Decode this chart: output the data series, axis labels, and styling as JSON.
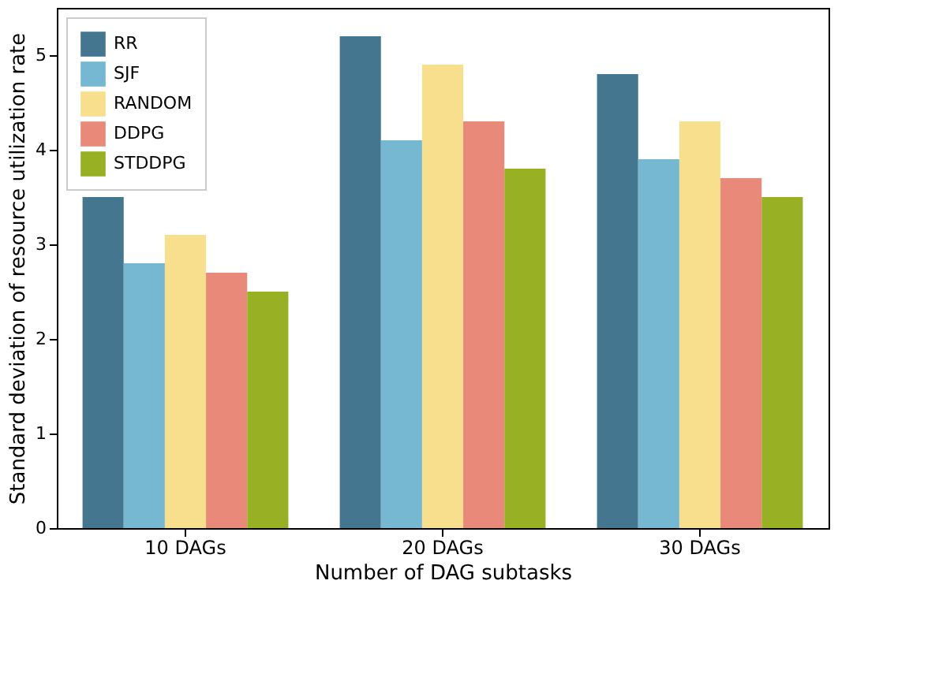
{
  "chart_data": {
    "type": "bar",
    "xlabel": "Number of DAG subtasks",
    "ylabel": "Standard deviation of resource utilization rate",
    "categories": [
      "10 DAGs",
      "20 DAGs",
      "30 DAGs"
    ],
    "series": [
      {
        "name": "RR",
        "color": "#44778f",
        "values": [
          3.5,
          5.2,
          4.8
        ]
      },
      {
        "name": "SJF",
        "color": "#76b8d1",
        "values": [
          2.8,
          4.1,
          3.9
        ]
      },
      {
        "name": "RANDOM",
        "color": "#f7df8e",
        "values": [
          3.1,
          4.9,
          4.3
        ]
      },
      {
        "name": "DDPG",
        "color": "#e8897a",
        "values": [
          2.7,
          4.3,
          3.7
        ]
      },
      {
        "name": "STDDPG",
        "color": "#98b023",
        "values": [
          2.5,
          3.8,
          3.5
        ]
      }
    ],
    "ylim": [
      0,
      5.5
    ],
    "yticks": [
      0,
      1,
      2,
      3,
      4,
      5
    ],
    "grid": false,
    "legend": "top left"
  }
}
